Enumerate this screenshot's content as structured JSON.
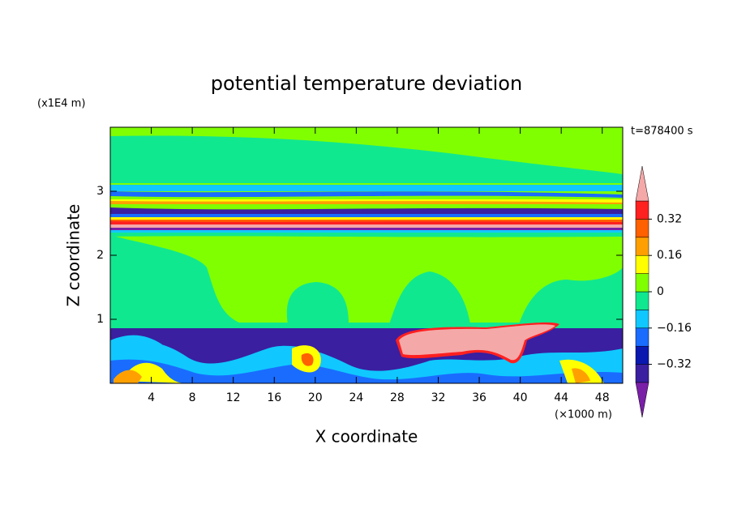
{
  "chart_data": {
    "type": "contour",
    "title": "potential temperature deviation",
    "x_label": "X coordinate",
    "y_label": "Z coordinate",
    "x_unit": "(×1000 m)",
    "y_unit": "(x1E4 m)",
    "time_label": "t=878400 s",
    "xlim": [
      0,
      50
    ],
    "ylim": [
      0,
      4
    ],
    "xticks": [
      4,
      8,
      12,
      16,
      20,
      24,
      28,
      32,
      36,
      40,
      44,
      48
    ],
    "yticks": [
      1,
      2,
      3
    ],
    "levels": [
      -0.4,
      -0.32,
      -0.24,
      -0.16,
      -0.08,
      0,
      0.08,
      0.16,
      0.24,
      0.32,
      0.4
    ],
    "colors": [
      "#7a1fa8",
      "#3a1fa0",
      "#0a18b0",
      "#1a6cff",
      "#10c8ff",
      "#10e890",
      "#80ff00",
      "#ffff00",
      "#ffa000",
      "#ff6000",
      "#ff2020",
      "#f5a8a8"
    ],
    "colorbar_ticks": [
      {
        "value": -0.32,
        "label": "−0.32"
      },
      {
        "value": -0.16,
        "label": "−0.16"
      },
      0,
      0.16,
      0.32
    ],
    "extend": "both"
  }
}
